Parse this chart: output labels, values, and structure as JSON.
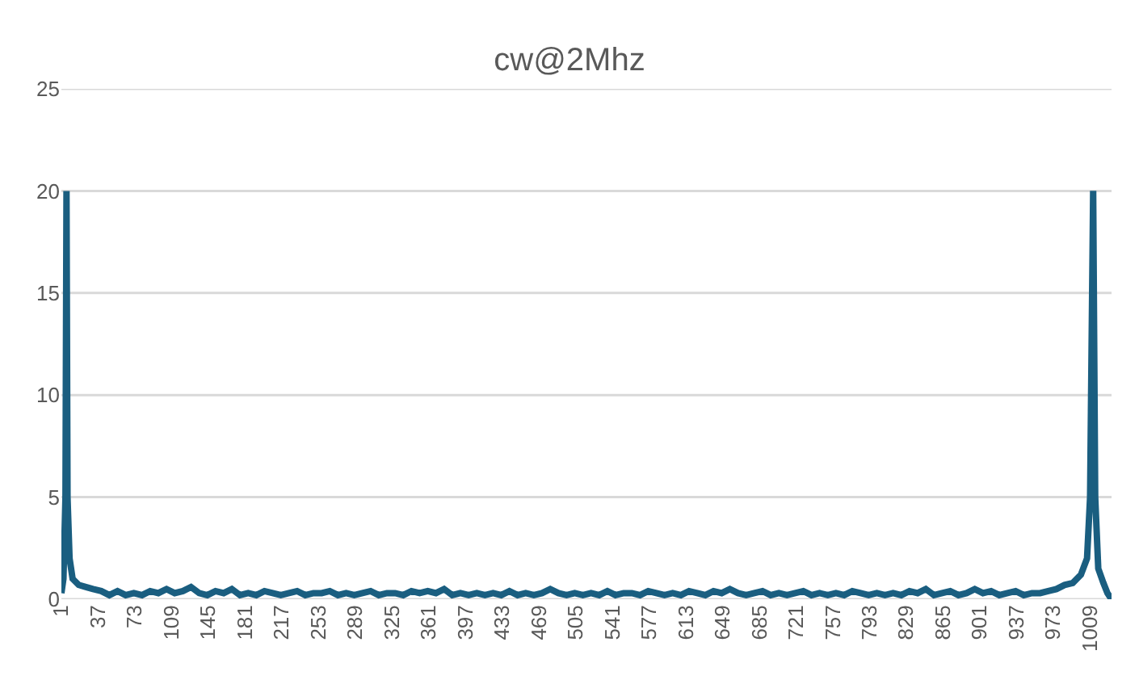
{
  "chart_data": {
    "type": "line",
    "title": "cw@2Mhz",
    "x": [
      1,
      3,
      5,
      6,
      7,
      9,
      12,
      18,
      25,
      32,
      40,
      48,
      56,
      64,
      72,
      80,
      88,
      96,
      104,
      112,
      120,
      128,
      136,
      144,
      152,
      160,
      168,
      176,
      184,
      192,
      200,
      208,
      216,
      224,
      232,
      240,
      248,
      256,
      264,
      272,
      280,
      288,
      296,
      304,
      312,
      320,
      328,
      336,
      344,
      352,
      360,
      368,
      376,
      384,
      392,
      400,
      408,
      416,
      424,
      432,
      440,
      448,
      456,
      464,
      472,
      480,
      488,
      496,
      504,
      512,
      520,
      528,
      536,
      544,
      552,
      560,
      568,
      576,
      584,
      592,
      600,
      608,
      616,
      624,
      632,
      640,
      648,
      656,
      664,
      672,
      680,
      688,
      696,
      704,
      712,
      720,
      728,
      736,
      744,
      752,
      760,
      768,
      776,
      784,
      792,
      800,
      808,
      816,
      824,
      832,
      840,
      848,
      856,
      864,
      872,
      880,
      888,
      896,
      904,
      912,
      920,
      928,
      936,
      944,
      952,
      960,
      968,
      976,
      984,
      992,
      1000,
      1006,
      1009,
      1012,
      1014,
      1017,
      1022,
      1026,
      1030
    ],
    "series": [
      {
        "color": "#1a5e80",
        "values": [
          0.3,
          1.0,
          5,
          20,
          5,
          2.0,
          1.0,
          0.7,
          0.6,
          0.5,
          0.4,
          0.2,
          0.4,
          0.2,
          0.3,
          0.2,
          0.4,
          0.3,
          0.5,
          0.3,
          0.4,
          0.6,
          0.3,
          0.2,
          0.4,
          0.3,
          0.5,
          0.2,
          0.3,
          0.2,
          0.4,
          0.3,
          0.2,
          0.3,
          0.4,
          0.2,
          0.3,
          0.3,
          0.4,
          0.2,
          0.3,
          0.2,
          0.3,
          0.4,
          0.2,
          0.3,
          0.3,
          0.2,
          0.4,
          0.3,
          0.4,
          0.3,
          0.5,
          0.2,
          0.3,
          0.2,
          0.3,
          0.2,
          0.3,
          0.2,
          0.4,
          0.2,
          0.3,
          0.2,
          0.3,
          0.5,
          0.3,
          0.2,
          0.3,
          0.2,
          0.3,
          0.2,
          0.4,
          0.2,
          0.3,
          0.3,
          0.2,
          0.4,
          0.3,
          0.2,
          0.3,
          0.2,
          0.4,
          0.3,
          0.2,
          0.4,
          0.3,
          0.5,
          0.3,
          0.2,
          0.3,
          0.4,
          0.2,
          0.3,
          0.2,
          0.3,
          0.4,
          0.2,
          0.3,
          0.2,
          0.3,
          0.2,
          0.4,
          0.3,
          0.2,
          0.3,
          0.2,
          0.3,
          0.2,
          0.4,
          0.3,
          0.5,
          0.2,
          0.3,
          0.4,
          0.2,
          0.3,
          0.5,
          0.3,
          0.4,
          0.2,
          0.3,
          0.4,
          0.2,
          0.3,
          0.3,
          0.4,
          0.5,
          0.7,
          0.8,
          1.2,
          2.0,
          5,
          20,
          5,
          1.5,
          0.8,
          0.3,
          0
        ]
      }
    ],
    "xlim": [
      1,
      1030
    ],
    "xticks": [
      1,
      37,
      73,
      109,
      145,
      181,
      217,
      253,
      289,
      325,
      361,
      397,
      433,
      469,
      505,
      541,
      577,
      613,
      649,
      685,
      721,
      757,
      793,
      829,
      865,
      901,
      937,
      973,
      1009
    ],
    "ylim": [
      0,
      25
    ],
    "yticks": [
      0,
      5,
      10,
      15,
      20,
      25
    ],
    "grid": "y",
    "marker": "none",
    "line_style": "solid"
  }
}
